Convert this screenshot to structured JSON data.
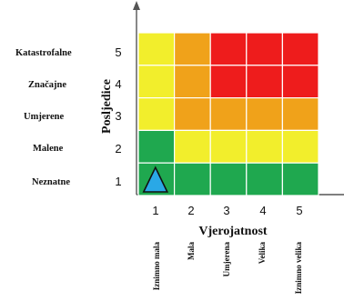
{
  "y_axis": {
    "title": "Posljedice",
    "levels": [
      {
        "number": "5",
        "label": "Katastrofalne"
      },
      {
        "number": "4",
        "label": "Značajne"
      },
      {
        "number": "3",
        "label": "Umjerene"
      },
      {
        "number": "2",
        "label": "Malene"
      },
      {
        "number": "1",
        "label": "Neznatne"
      }
    ]
  },
  "x_axis": {
    "title": "Vjerojatnost",
    "levels": [
      {
        "number": "1",
        "label": "Iznimno mala"
      },
      {
        "number": "2",
        "label": "Mala"
      },
      {
        "number": "3",
        "label": "Umjerena"
      },
      {
        "number": "4",
        "label": "Velika"
      },
      {
        "number": "5",
        "label": "Iznimno velika"
      }
    ]
  },
  "matrix": {
    "rows_top_to_bottom": [
      [
        "yellow",
        "orange",
        "red",
        "red",
        "red"
      ],
      [
        "yellow",
        "orange",
        "red",
        "red",
        "red"
      ],
      [
        "yellow",
        "orange",
        "orange",
        "orange",
        "orange"
      ],
      [
        "green",
        "yellow",
        "yellow",
        "yellow",
        "yellow"
      ],
      [
        "green",
        "green",
        "green",
        "green",
        "green"
      ]
    ],
    "colors": {
      "green": "#1fa84f",
      "yellow": "#f2ee2c",
      "orange": "#f0a21a",
      "red": "#ee1c1c"
    },
    "marker": {
      "shape": "triangle",
      "color": "#2aa8e6",
      "probability": 1,
      "consequence": 1
    }
  }
}
